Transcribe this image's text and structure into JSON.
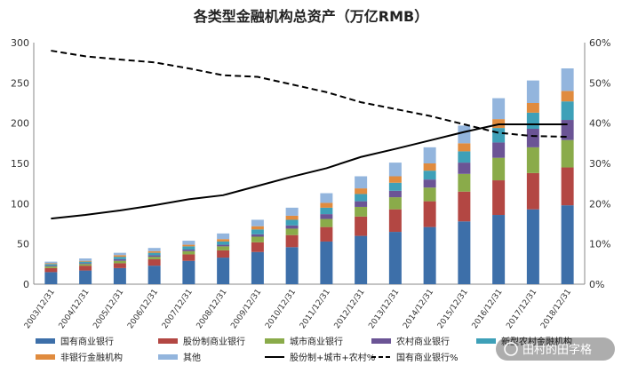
{
  "chart_data": {
    "type": "bar",
    "title": "各类型金融机构总资产（万亿RMB）",
    "categories": [
      "2003/12/31",
      "2004/12/31",
      "2005/12/31",
      "2006/12/31",
      "2007/12/31",
      "2008/12/31",
      "2009/12/31",
      "2010/12/31",
      "2011/12/31",
      "2012/12/31",
      "2013/12/31",
      "2014/12/31",
      "2015/12/31",
      "2016/12/31",
      "2017/12/31",
      "2018/12/31"
    ],
    "ylim": [
      0,
      300
    ],
    "yticks": [
      0,
      50,
      100,
      150,
      200,
      250,
      300
    ],
    "y2lim": [
      0,
      0.6
    ],
    "y2ticks": [
      "0%",
      "10%",
      "20%",
      "30%",
      "40%",
      "50%",
      "60%"
    ],
    "stacked": true,
    "legend_position": "bottom",
    "grid": false,
    "series": [
      {
        "name": "国有商业银行",
        "kind": "bar",
        "color": "#3d6fa9",
        "values": [
          15,
          17,
          20,
          23,
          29,
          33,
          40,
          46,
          53,
          60,
          65,
          71,
          78,
          86,
          93,
          98
        ]
      },
      {
        "name": "股份制商业银行",
        "kind": "bar",
        "color": "#b34743",
        "values": [
          5,
          6,
          6,
          8,
          8,
          9,
          12,
          15,
          18,
          24,
          28,
          32,
          37,
          43,
          45,
          47
        ]
      },
      {
        "name": "城市商业银行",
        "kind": "bar",
        "color": "#8aab4a",
        "values": [
          2,
          2,
          3,
          3,
          4,
          5,
          7,
          8,
          10,
          12,
          15,
          17,
          22,
          28,
          32,
          34
        ]
      },
      {
        "name": "农村商业银行",
        "kind": "bar",
        "color": "#6b5495",
        "values": [
          1,
          1,
          2,
          2,
          2,
          2,
          3,
          4,
          6,
          7,
          8,
          10,
          14,
          19,
          23,
          25
        ]
      },
      {
        "name": "新型农村金融机构",
        "kind": "bar",
        "color": "#3ea0b8",
        "values": [
          2,
          2,
          3,
          3,
          4,
          4,
          6,
          7,
          8,
          9,
          10,
          11,
          14,
          18,
          20,
          23
        ]
      },
      {
        "name": "非银行金融机构",
        "kind": "bar",
        "color": "#e08b3e",
        "values": [
          1,
          1,
          2,
          2,
          2,
          3,
          4,
          5,
          6,
          7,
          8,
          9,
          10,
          11,
          12,
          13
        ]
      },
      {
        "name": "其他",
        "kind": "bar",
        "color": "#93b5dd",
        "values": [
          2,
          3,
          3,
          4,
          5,
          7,
          8,
          10,
          12,
          15,
          17,
          20,
          22,
          26,
          28,
          28
        ]
      },
      {
        "name": "股份制+城市+农村%",
        "kind": "line",
        "axis": "right",
        "color": "#000000",
        "dash": "solid",
        "values": [
          0.163,
          0.172,
          0.183,
          0.196,
          0.211,
          0.221,
          0.244,
          0.267,
          0.288,
          0.316,
          0.336,
          0.357,
          0.378,
          0.397,
          0.397,
          0.397
        ]
      },
      {
        "name": "国有商业银行%",
        "kind": "line",
        "axis": "right",
        "color": "#000000",
        "dash": "dashed",
        "values": [
          0.58,
          0.566,
          0.558,
          0.551,
          0.536,
          0.519,
          0.515,
          0.496,
          0.477,
          0.452,
          0.435,
          0.418,
          0.397,
          0.376,
          0.368,
          0.366
        ]
      }
    ]
  },
  "watermark": "田村的田字格"
}
